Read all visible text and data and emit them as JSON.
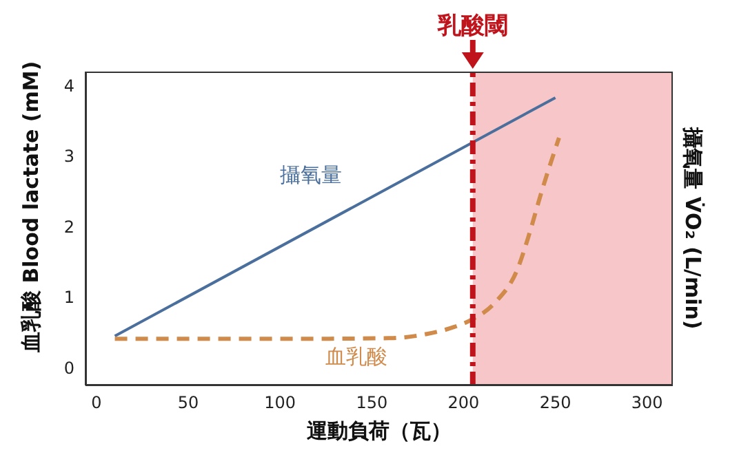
{
  "chart_data": {
    "type": "line",
    "xlabel": "運動負荷（瓦）",
    "ylabel": "血乳酸  Blood lactate (mM)",
    "y2label": "攝氧量 V̇O₂ (L/min)",
    "xlim": [
      -6,
      314
    ],
    "xticks": [
      0,
      50,
      100,
      150,
      200,
      250,
      300
    ],
    "ylim": [
      -0.25,
      4.2
    ],
    "yticks": [
      0,
      1,
      2,
      3,
      4
    ],
    "marker": "none",
    "series": [
      {
        "name": "攝氧量",
        "color": "#4a6f9c",
        "line_style": "solid",
        "x": [
          10,
          250
        ],
        "values": [
          0.45,
          3.83
        ]
      },
      {
        "name": "血乳酸",
        "color": "#d08a4a",
        "line_style": "dashed",
        "x": [
          10,
          100,
          160,
          180,
          195,
          205,
          217,
          230,
          235,
          243,
          252
        ],
        "values": [
          0.41,
          0.41,
          0.42,
          0.48,
          0.58,
          0.69,
          0.92,
          1.44,
          1.83,
          2.54,
          3.26
        ]
      }
    ],
    "ref_lines": [
      {
        "axis": "x",
        "value": 205,
        "label": "乳酸閾",
        "color": "#c0141c",
        "line_style": "dashdot"
      }
    ],
    "bands": [
      {
        "axis": "x",
        "from": 205,
        "to": 314,
        "color": "#f7c6c9"
      }
    ]
  }
}
